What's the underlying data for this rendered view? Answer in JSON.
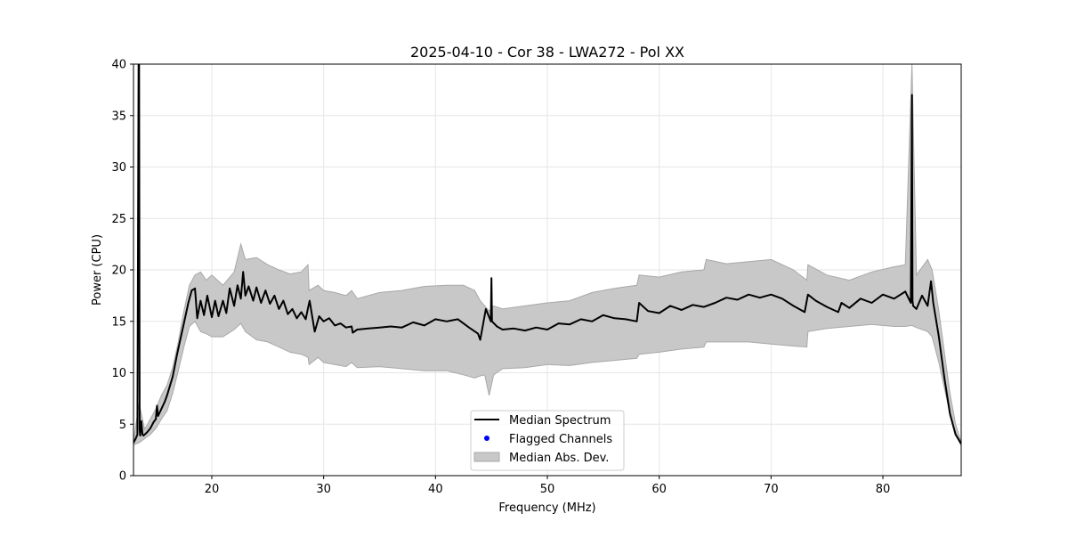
{
  "chart_data": {
    "type": "line",
    "title": "2025-04-10 - Cor 38 - LWA272 - Pol XX",
    "xlabel": "Frequency (MHz)",
    "ylabel": "Power (CPU)",
    "xlim": [
      13.0,
      87.0
    ],
    "ylim": [
      0,
      40
    ],
    "xticks": [
      20,
      30,
      40,
      50,
      60,
      70,
      80
    ],
    "yticks": [
      0,
      5,
      10,
      15,
      20,
      25,
      30,
      35,
      40
    ],
    "grid": true,
    "legend_position": "lower center",
    "legend": [
      {
        "label": "Median Spectrum",
        "kind": "line",
        "color": "#000000"
      },
      {
        "label": "Flagged Channels",
        "kind": "point",
        "color": "#0000ff"
      },
      {
        "label": "Median Abs. Dev.",
        "kind": "patch",
        "color": "#c8c8c8"
      }
    ],
    "series": [
      {
        "name": "Median Spectrum",
        "color": "#000000",
        "x": [
          13.0,
          13.2,
          13.35,
          13.45,
          13.5,
          13.55,
          13.6,
          13.7,
          13.8,
          13.9,
          14.0,
          14.2,
          14.5,
          14.8,
          15.0,
          15.1,
          15.2,
          15.5,
          15.8,
          16.0,
          16.5,
          16.9,
          17.1,
          17.5,
          17.9,
          18.2,
          18.5,
          18.7,
          19.0,
          19.3,
          19.6,
          20.0,
          20.3,
          20.6,
          21.0,
          21.3,
          21.6,
          22.0,
          22.3,
          22.6,
          22.8,
          23.0,
          23.3,
          23.7,
          24.0,
          24.4,
          24.8,
          25.2,
          25.6,
          26.0,
          26.4,
          26.8,
          27.2,
          27.6,
          28.0,
          28.4,
          28.6,
          28.75,
          29.2,
          29.6,
          30.0,
          30.5,
          31.0,
          31.5,
          32.0,
          32.5,
          32.6,
          33.0,
          34.0,
          35.0,
          36.0,
          37.0,
          38.0,
          39.0,
          40.0,
          41.0,
          42.0,
          43.0,
          43.8,
          44.0,
          44.5,
          44.95,
          45.0,
          45.05,
          45.5,
          46.0,
          47.0,
          48.0,
          49.0,
          50.0,
          51.0,
          52.0,
          53.0,
          54.0,
          55.0,
          56.0,
          57.0,
          58.0,
          58.2,
          59.0,
          60.0,
          61.0,
          62.0,
          63.0,
          64.0,
          65.0,
          66.0,
          67.0,
          68.0,
          69.0,
          70.0,
          71.0,
          72.0,
          73.0,
          73.3,
          74.0,
          75.0,
          76.0,
          76.3,
          77.0,
          78.0,
          79.0,
          80.0,
          81.0,
          82.0,
          82.5,
          82.6,
          82.65,
          82.7,
          83.0,
          83.5,
          84.0,
          84.3,
          84.5,
          85.0,
          85.5,
          86.0,
          86.5,
          87.0
        ],
        "y": [
          3.2,
          3.6,
          4.0,
          40.0,
          40.0,
          4.5,
          3.9,
          5.3,
          4.0,
          3.9,
          4.0,
          4.2,
          4.6,
          5.2,
          5.5,
          6.8,
          5.8,
          6.5,
          7.2,
          7.8,
          9.6,
          11.8,
          12.8,
          14.8,
          16.8,
          18.0,
          18.2,
          15.3,
          17.0,
          15.6,
          17.5,
          15.4,
          17.0,
          15.5,
          17.0,
          15.8,
          18.2,
          16.5,
          18.5,
          17.2,
          19.8,
          17.5,
          18.4,
          17.0,
          18.3,
          16.8,
          18.0,
          16.7,
          17.5,
          16.2,
          17.0,
          15.7,
          16.2,
          15.3,
          15.9,
          15.2,
          16.3,
          17.0,
          14.0,
          15.5,
          15.0,
          15.3,
          14.6,
          14.8,
          14.4,
          14.5,
          13.9,
          14.2,
          14.3,
          14.4,
          14.5,
          14.4,
          14.9,
          14.6,
          15.2,
          15.0,
          15.2,
          14.4,
          13.8,
          13.2,
          16.2,
          15.0,
          19.2,
          15.0,
          14.5,
          14.2,
          14.3,
          14.1,
          14.4,
          14.2,
          14.8,
          14.7,
          15.2,
          15.0,
          15.6,
          15.3,
          15.2,
          15.0,
          16.8,
          16.0,
          15.8,
          16.5,
          16.1,
          16.6,
          16.4,
          16.8,
          17.3,
          17.1,
          17.6,
          17.3,
          17.6,
          17.2,
          16.5,
          15.9,
          17.6,
          17.0,
          16.4,
          15.9,
          16.8,
          16.3,
          17.2,
          16.8,
          17.6,
          17.2,
          17.9,
          16.8,
          37.0,
          17.0,
          16.5,
          16.2,
          17.5,
          16.5,
          18.9,
          16.8,
          13.5,
          9.5,
          6.0,
          4.0,
          3.1
        ]
      }
    ],
    "band": {
      "name": "Median Abs. Dev.",
      "color": "#c8c8c8",
      "edge": "#a8a8a8",
      "x": [
        13.0,
        13.5,
        14.0,
        14.5,
        15.0,
        15.5,
        16.0,
        16.5,
        17.0,
        17.5,
        18.0,
        18.5,
        19.0,
        19.5,
        20.0,
        21.0,
        22.0,
        22.6,
        23.0,
        24.0,
        25.0,
        26.0,
        27.0,
        28.0,
        28.6,
        28.7,
        29.5,
        30.0,
        31.0,
        32.0,
        32.5,
        33.0,
        35.0,
        37.0,
        39.0,
        41.0,
        42.5,
        43.5,
        44.0,
        44.4,
        44.8,
        45.2,
        46.0,
        48.0,
        50.0,
        52.0,
        54.0,
        56.0,
        58.0,
        58.2,
        60.0,
        62.0,
        64.0,
        64.2,
        66.0,
        68.0,
        70.0,
        72.0,
        73.2,
        73.3,
        75.0,
        77.0,
        79.0,
        81.0,
        82.0,
        82.6,
        83.0,
        84.0,
        84.4,
        85.0,
        85.5,
        86.0,
        86.5,
        87.0
      ],
      "upper": [
        3.4,
        7.0,
        4.5,
        5.5,
        6.5,
        7.8,
        8.8,
        10.5,
        13.0,
        16.0,
        18.5,
        19.5,
        19.8,
        19.0,
        19.5,
        18.5,
        19.8,
        22.5,
        21.0,
        21.2,
        20.5,
        20.0,
        19.6,
        19.8,
        20.5,
        18.0,
        18.5,
        18.0,
        17.8,
        17.5,
        18.0,
        17.2,
        17.8,
        18.0,
        18.4,
        18.5,
        18.5,
        18.0,
        17.0,
        16.5,
        16.0,
        16.5,
        16.2,
        16.5,
        16.8,
        17.0,
        17.8,
        18.2,
        18.5,
        19.5,
        19.3,
        19.8,
        20.0,
        21.0,
        20.6,
        20.8,
        21.0,
        20.0,
        19.0,
        20.5,
        19.5,
        19.0,
        19.8,
        20.3,
        20.5,
        40.0,
        19.5,
        21.0,
        20.0,
        16.0,
        12.0,
        8.0,
        5.0,
        3.2
      ],
      "lower": [
        3.0,
        3.2,
        3.6,
        4.0,
        4.6,
        5.5,
        6.3,
        8.0,
        10.2,
        12.5,
        14.5,
        15.0,
        14.0,
        13.8,
        13.5,
        13.5,
        14.2,
        14.8,
        14.0,
        13.2,
        13.0,
        12.5,
        12.0,
        11.8,
        11.5,
        10.8,
        11.5,
        11.0,
        10.8,
        10.6,
        11.0,
        10.5,
        10.6,
        10.4,
        10.2,
        10.2,
        9.8,
        9.5,
        9.7,
        9.8,
        7.8,
        9.8,
        10.4,
        10.5,
        10.8,
        10.7,
        11.0,
        11.2,
        11.4,
        11.8,
        12.0,
        12.3,
        12.5,
        13.0,
        13.0,
        13.0,
        12.8,
        12.6,
        12.5,
        14.0,
        14.3,
        14.5,
        14.7,
        14.5,
        14.5,
        14.6,
        14.4,
        14.0,
        13.5,
        11.0,
        8.5,
        6.0,
        4.0,
        2.9
      ]
    },
    "flagged_channels": []
  }
}
